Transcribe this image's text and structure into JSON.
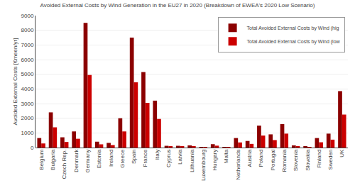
{
  "chart_data": {
    "type": "bar",
    "title": "Avoided External Costs by Wind Generation in the EU27 in 2020 (Breakdown of EWEA's 2020 Low Scenario)",
    "ylabel": "Avoided External Costs [€meen/yr]",
    "categories": [
      "Belgium",
      "Bulgaria",
      "Czech Rep.",
      "Denmark",
      "Germany",
      "Estonia",
      "Ireland",
      "Greece",
      "Spain",
      "France",
      "Italy",
      "Cyprus",
      "Latvia",
      "Lithuania",
      "Luxembourg",
      "Hungary",
      "Malta",
      "Netherlands",
      "Austria",
      "Poland",
      "Portugal",
      "Romania",
      "Slovenia",
      "Slovakia",
      "Finland",
      "Sweden",
      "UK"
    ],
    "series": [
      {
        "name": "Total Avoided External Costs by Wind (hig",
        "color": "#8B0000",
        "values": [
          650,
          2400,
          700,
          1100,
          8500,
          400,
          320,
          2000,
          7500,
          5150,
          3200,
          120,
          120,
          150,
          30,
          230,
          30,
          650,
          450,
          1500,
          900,
          1600,
          150,
          80,
          650,
          950,
          3850
        ]
      },
      {
        "name": "Total Avoided External Costs by Wind (low",
        "color": "#CC0000",
        "values": [
          280,
          1380,
          380,
          600,
          4950,
          220,
          170,
          1100,
          4450,
          3050,
          1950,
          60,
          65,
          80,
          15,
          130,
          15,
          350,
          250,
          820,
          510,
          950,
          80,
          40,
          360,
          540,
          2250
        ]
      }
    ],
    "ylim": [
      0,
      9000
    ],
    "yticks": [
      0,
      1000,
      2000,
      3000,
      4000,
      5000,
      6000,
      7000,
      8000,
      9000
    ],
    "grid": true,
    "legend": "upper right"
  }
}
